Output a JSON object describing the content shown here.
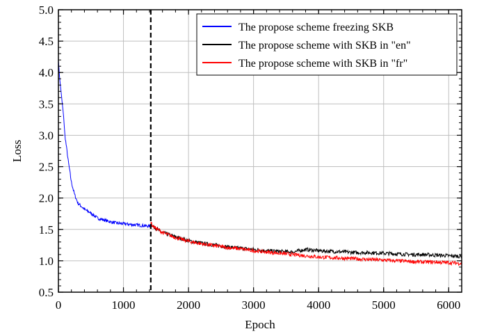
{
  "chart_data": {
    "type": "line",
    "title": "",
    "xlabel": "Epoch",
    "ylabel": "Loss",
    "xlim": [
      0,
      6200
    ],
    "ylim": [
      0.5,
      5.0
    ],
    "xticks": [
      0,
      1000,
      2000,
      3000,
      4000,
      5000,
      6000
    ],
    "yticks": [
      0.5,
      1.0,
      1.5,
      2.0,
      2.5,
      3.0,
      3.5,
      4.0,
      4.5,
      5.0
    ],
    "xtick_labels": [
      "0",
      "1000",
      "2000",
      "3000",
      "4000",
      "5000",
      "6000"
    ],
    "ytick_labels": [
      "0.5",
      "1.0",
      "1.5",
      "2.0",
      "2.5",
      "3.0",
      "3.5",
      "4.0",
      "4.5",
      "5.0"
    ],
    "grid": true,
    "legend_position": "top-right",
    "vline": {
      "x": 1420,
      "style": "dashed",
      "color": "#000000"
    },
    "series": [
      {
        "name": "The propose scheme freezing SKB",
        "color": "#0000ff",
        "x": [
          0,
          20,
          50,
          80,
          100,
          150,
          200,
          250,
          300,
          400,
          500,
          600,
          700,
          800,
          900,
          1000,
          1100,
          1200,
          1300,
          1420
        ],
        "y": [
          4.2,
          3.9,
          3.6,
          3.3,
          3.0,
          2.6,
          2.25,
          2.05,
          1.92,
          1.82,
          1.76,
          1.68,
          1.65,
          1.62,
          1.6,
          1.59,
          1.58,
          1.57,
          1.56,
          1.55
        ],
        "noise": 0.025
      },
      {
        "name": "The propose scheme with SKB in \"en\"",
        "color": "#000000",
        "x": [
          1420,
          1450,
          1600,
          1800,
          2000,
          2200,
          2400,
          2600,
          2800,
          3000,
          3200,
          3400,
          3600,
          3800,
          4000,
          4200,
          4400,
          4600,
          4800,
          5000,
          5200,
          5400,
          5600,
          5800,
          6000,
          6200
        ],
        "y": [
          1.6,
          1.55,
          1.45,
          1.38,
          1.32,
          1.28,
          1.25,
          1.22,
          1.2,
          1.18,
          1.16,
          1.15,
          1.14,
          1.18,
          1.16,
          1.15,
          1.14,
          1.13,
          1.13,
          1.12,
          1.11,
          1.1,
          1.1,
          1.09,
          1.08,
          1.07
        ],
        "noise": 0.03
      },
      {
        "name": "The propose scheme with SKB in \"fr\"",
        "color": "#ff0000",
        "x": [
          1420,
          1450,
          1600,
          1800,
          2000,
          2200,
          2400,
          2600,
          2800,
          3000,
          3200,
          3400,
          3600,
          3800,
          4000,
          4200,
          4400,
          4600,
          4800,
          5000,
          5200,
          5400,
          5600,
          5800,
          6000,
          6200
        ],
        "y": [
          1.62,
          1.55,
          1.45,
          1.37,
          1.31,
          1.27,
          1.24,
          1.21,
          1.19,
          1.16,
          1.14,
          1.12,
          1.1,
          1.08,
          1.06,
          1.05,
          1.04,
          1.03,
          1.02,
          1.01,
          1.0,
          0.99,
          0.98,
          0.98,
          0.97,
          0.96
        ],
        "noise": 0.03
      }
    ]
  }
}
